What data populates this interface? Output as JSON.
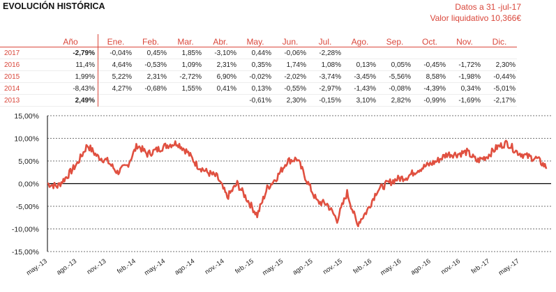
{
  "header": {
    "title": "EVOLUCIÓN HISTÓRICA",
    "date_line": "Datos a 31 -jul-17",
    "nav_line": "Valor liquidativo 10,366€"
  },
  "table": {
    "year_header": "Año",
    "months": [
      "Ene.",
      "Feb.",
      "Mar.",
      "Abr.",
      "May.",
      "Jun.",
      "Jul.",
      "Ago.",
      "Sep.",
      "Oct.",
      "Nov.",
      "Dic."
    ],
    "rows": [
      {
        "year": "2017",
        "annual": "-2,79%",
        "bold": true,
        "monthly": [
          "-0,04%",
          "0,45%",
          "1,85%",
          "-3,10%",
          "0,44%",
          "-0,06%",
          "-2,28%",
          "",
          "",
          "",
          "",
          ""
        ]
      },
      {
        "year": "2016",
        "annual": "11,4%",
        "bold": false,
        "monthly": [
          "4,64%",
          "-0,53%",
          "1,09%",
          "2,31%",
          "0,35%",
          "1,74%",
          "1,08%",
          "0,13%",
          "0,05%",
          "-0,45%",
          "-1,72%",
          "2,30%"
        ]
      },
      {
        "year": "2015",
        "annual": "1,99%",
        "bold": false,
        "monthly": [
          "5,22%",
          "2,31%",
          "-2,72%",
          "6,90%",
          "-0,02%",
          "-2,02%",
          "-3,74%",
          "-3,45%",
          "-5,56%",
          "8,58%",
          "-1,98%",
          "-0,44%"
        ]
      },
      {
        "year": "2014",
        "annual": "-8,43%",
        "bold": false,
        "monthly": [
          "4,27%",
          "-0,68%",
          "1,55%",
          "0,41%",
          "0,13%",
          "-0,55%",
          "-2,97%",
          "-1,43%",
          "-0,08%",
          "-4,39%",
          "0,34%",
          "-5,01%"
        ]
      },
      {
        "year": "2013",
        "annual": "2,49%",
        "bold": true,
        "monthly": [
          "",
          "",
          "",
          "",
          "-0,61%",
          "2,30%",
          "-0,15%",
          "3,10%",
          "2,82%",
          "-0,99%",
          "-1,69%",
          "-2,17%"
        ]
      }
    ]
  },
  "chart_data": {
    "type": "line",
    "ylim": [
      -15,
      15
    ],
    "y_ticks": [
      15,
      10,
      5,
      0,
      -5,
      -10,
      -15
    ],
    "y_tick_labels": [
      "15,00%",
      "10,00%",
      "5,00%",
      "0,00%",
      "-5,00%",
      "-10,00%",
      "-15,00%"
    ],
    "x_tick_labels": [
      "may.-13",
      "ago.-13",
      "nov.-13",
      "feb.-14",
      "may.-14",
      "ago.-14",
      "nov.-14",
      "feb.-15",
      "may.-15",
      "ago.-15",
      "nov.-15",
      "feb.-16",
      "may.-16",
      "ago.-16",
      "nov.-16",
      "feb.-17",
      "may.-17"
    ],
    "grid": "horizontal-dashed",
    "line_color": "#e05040",
    "series": [
      {
        "x": [
          "may.-13",
          "jun.-13",
          "jul.-13",
          "ago.-13",
          "sep.-13",
          "oct.-13",
          "nov.-13",
          "dic.-13",
          "ene.-14",
          "feb.-14",
          "mar.-14",
          "abr.-14",
          "may.-14",
          "jun.-14",
          "jul.-14",
          "ago.-14",
          "sep.-14",
          "oct.-14",
          "nov.-14",
          "dic.-14",
          "ene.-15",
          "feb.-15",
          "mar.-15",
          "abr.-15",
          "may.-15",
          "jun.-15",
          "jul.-15",
          "ago.-15",
          "sep.-15",
          "oct.-15",
          "nov.-15",
          "dic.-15",
          "ene.-16",
          "feb.-16",
          "mar.-16",
          "abr.-16",
          "may.-16",
          "jun.-16",
          "jul.-16",
          "ago.-16",
          "sep.-16",
          "oct.-16",
          "nov.-16",
          "dic.-16",
          "ene.-17",
          "feb.-17",
          "mar.-17",
          "abr.-17",
          "may.-17",
          "jun.-17",
          "jul.-17"
        ],
        "values": [
          0.0,
          -0.6,
          1.7,
          4.5,
          8.5,
          6.0,
          5.0,
          2.5,
          4.0,
          8.5,
          6.5,
          7.5,
          8.5,
          9.0,
          7.0,
          4.0,
          2.5,
          1.5,
          -3.0,
          0.0,
          -3.5,
          -7.0,
          -1.0,
          1.5,
          5.0,
          5.5,
          0.5,
          -4.0,
          -4.5,
          -8.0,
          -2.0,
          -9.0,
          -6.0,
          -1.5,
          0.0,
          1.0,
          1.5,
          3.0,
          4.0,
          5.0,
          6.5,
          6.5,
          7.0,
          5.0,
          6.0,
          8.0,
          9.0,
          7.0,
          6.0,
          5.5,
          3.5
        ]
      }
    ]
  }
}
